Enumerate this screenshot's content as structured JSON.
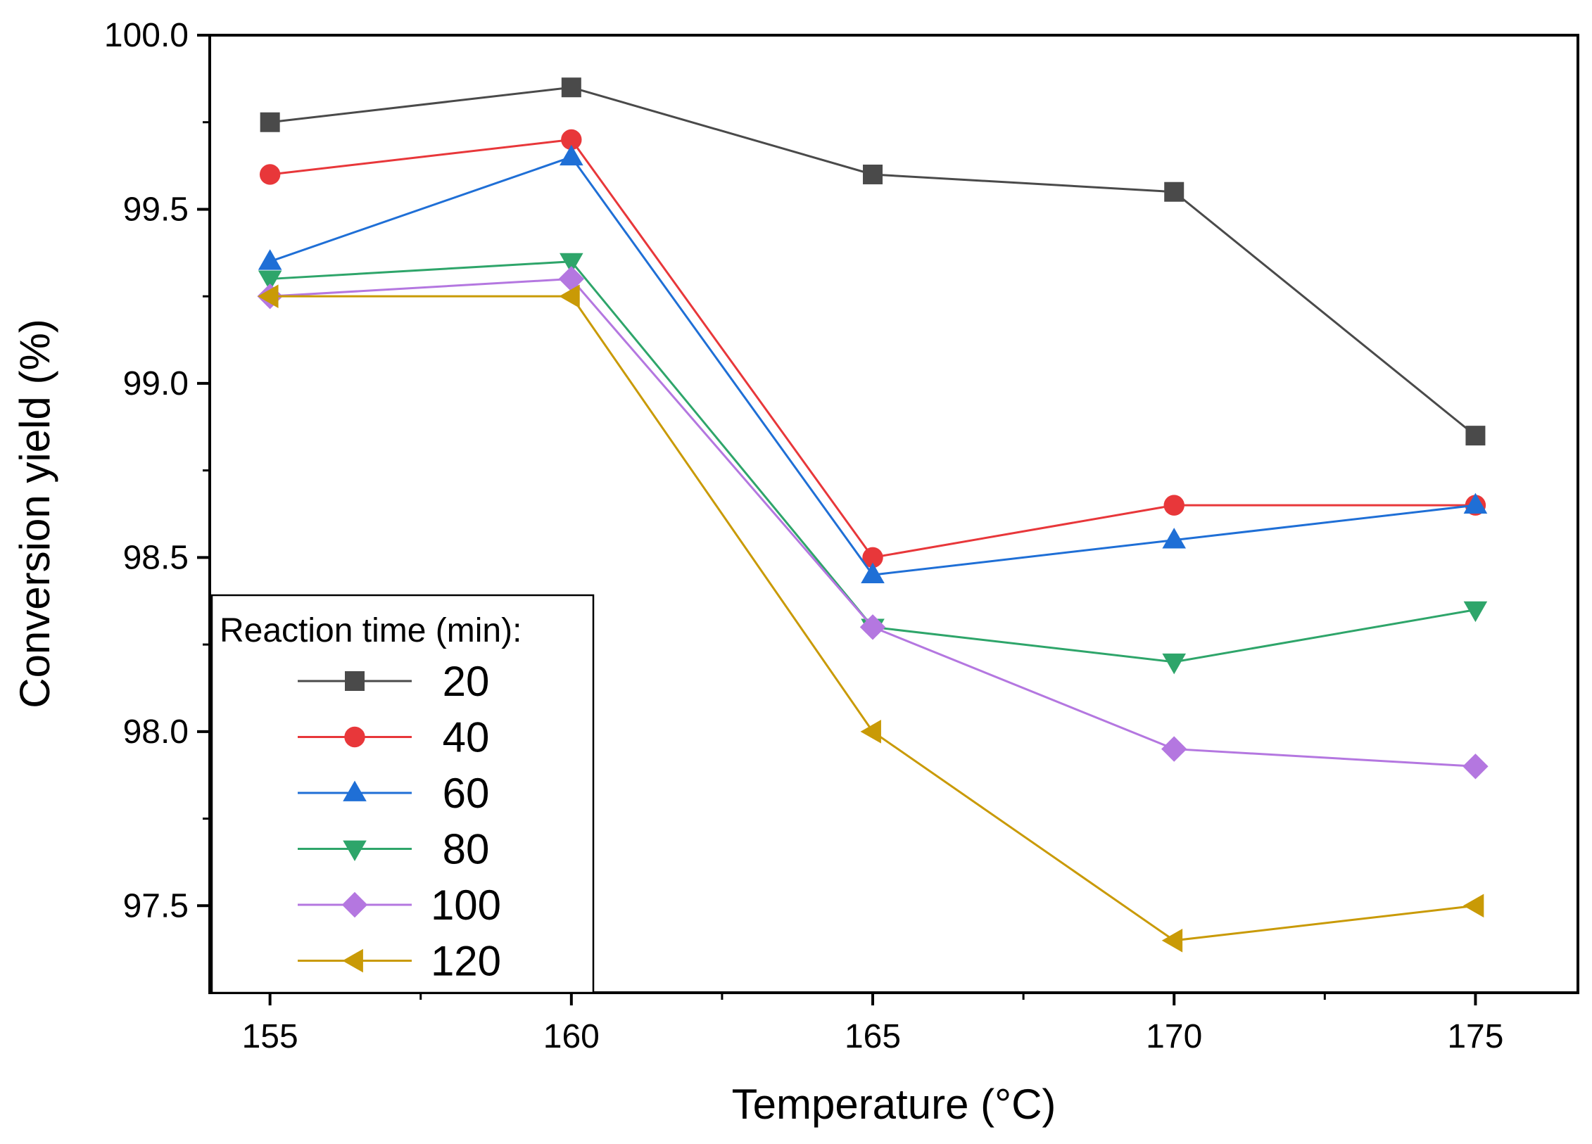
{
  "chart_data": {
    "type": "line",
    "title": "",
    "xlabel": "Temperature (°C)",
    "ylabel": "Conversion yield (%)",
    "x": [
      155,
      160,
      165,
      170,
      175
    ],
    "x_tick_labels": [
      "155",
      "160",
      "165",
      "170",
      "175"
    ],
    "xlim": [
      154,
      176.7
    ],
    "ylim": [
      97.25,
      100.0
    ],
    "y_ticks": [
      97.5,
      98.0,
      98.5,
      99.0,
      99.5,
      100.0
    ],
    "y_tick_labels": [
      "97.5",
      "98.0",
      "98.5",
      "99.0",
      "99.5",
      "100.0"
    ],
    "grid": false,
    "legend": {
      "title": "Reaction time (min):",
      "placement": "bottom-left"
    },
    "series": [
      {
        "name": "20",
        "marker": "square",
        "color": "#4a4a4a",
        "values": [
          99.75,
          99.85,
          99.6,
          99.55,
          98.85
        ]
      },
      {
        "name": "40",
        "marker": "circle",
        "color": "#e8373a",
        "values": [
          99.6,
          99.7,
          98.5,
          98.65,
          98.65
        ]
      },
      {
        "name": "60",
        "marker": "triangle-up",
        "color": "#1f6fd6",
        "values": [
          99.35,
          99.65,
          98.45,
          98.55,
          98.65
        ]
      },
      {
        "name": "80",
        "marker": "triangle-down",
        "color": "#2ea56a",
        "values": [
          99.3,
          99.35,
          98.3,
          98.2,
          98.35
        ]
      },
      {
        "name": "100",
        "marker": "diamond",
        "color": "#b477e0",
        "values": [
          99.25,
          99.3,
          98.3,
          97.95,
          97.9
        ]
      },
      {
        "name": "120",
        "marker": "triangle-left",
        "color": "#c99a06",
        "values": [
          99.25,
          99.25,
          98.0,
          97.4,
          97.5
        ]
      }
    ]
  }
}
